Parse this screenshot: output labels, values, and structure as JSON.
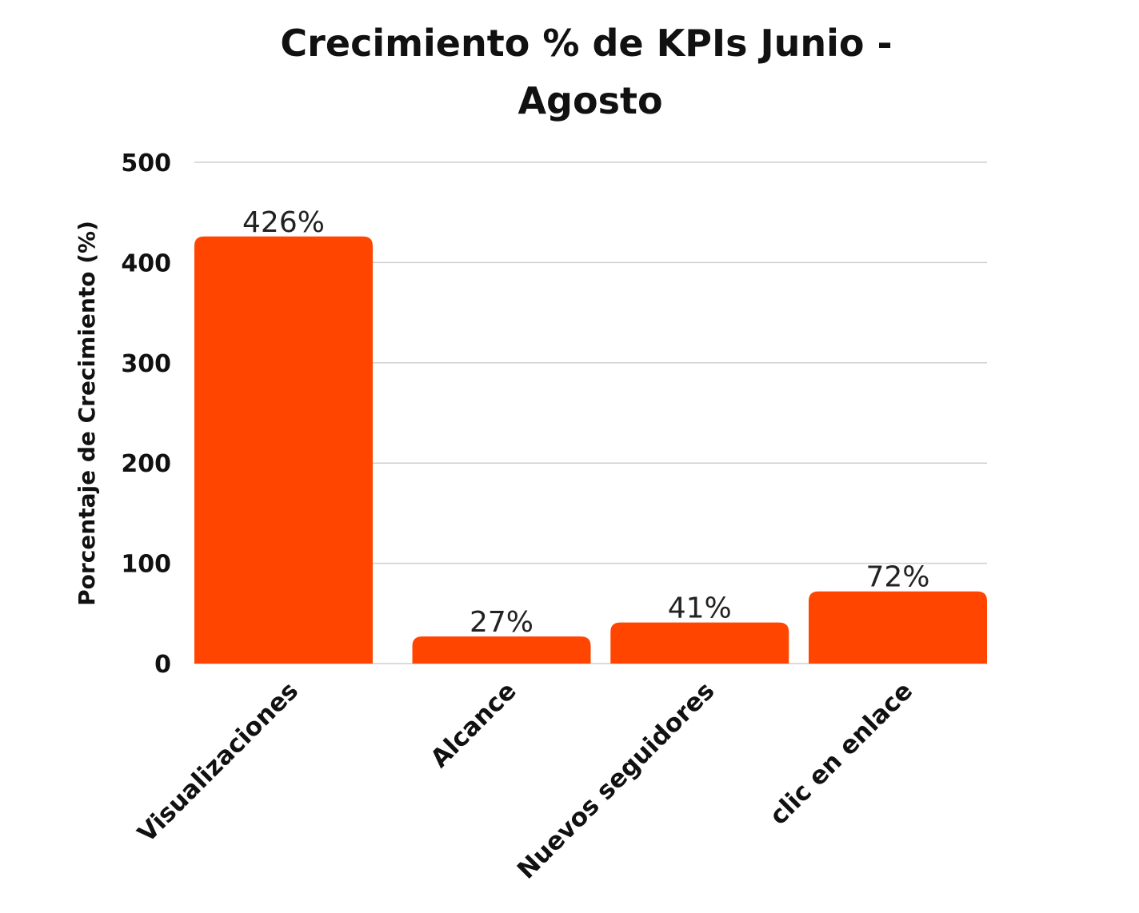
{
  "chart_data": {
    "type": "bar",
    "title_lines": [
      "Crecimiento % de KPIs Junio -",
      "Agosto"
    ],
    "xlabel": "",
    "ylabel": "Porcentaje de Crecimiento (%)",
    "categories": [
      "Visualizaciones",
      "Alcance",
      "Nuevos seguidores",
      "clic en enlace"
    ],
    "values": [
      426,
      27,
      41,
      72
    ],
    "data_labels": [
      "426%",
      "27%",
      "41%",
      "72%"
    ],
    "ylim": [
      0,
      500
    ],
    "yticks": [
      0,
      100,
      200,
      300,
      400,
      500
    ],
    "ytick_labels": [
      "0",
      "100",
      "200",
      "300",
      "400",
      "500"
    ],
    "grid": true,
    "legend": "none",
    "colors": {
      "bar": "#ff4500",
      "grid": "#cfcfcf",
      "text": "#111111"
    }
  }
}
